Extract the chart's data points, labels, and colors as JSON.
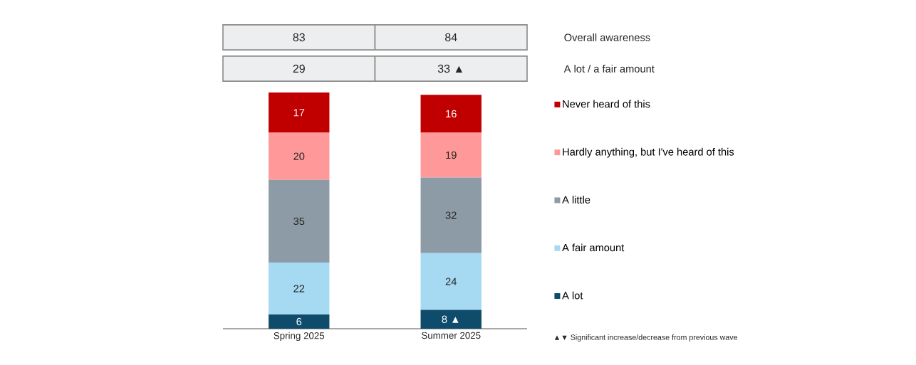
{
  "chart_data": [
    {
      "type": "other",
      "y2_categories": [
        "Overall awareness",
        "A lot / a fair amount"
      ],
      "cell_labels": [
        [
          "83",
          "84"
        ],
        [
          "29",
          "33 ▲"
        ]
      ]
    },
    {
      "type": "bar",
      "stacked": true,
      "categories": [
        "Spring 2025",
        "Summer 2025"
      ],
      "legend": "right",
      "series": [
        {
          "name": "A lot",
          "color": "#0f4c6b",
          "values": [
            6,
            8
          ],
          "value_labels": [
            "6",
            "8 ▲"
          ]
        },
        {
          "name": "A fair amount",
          "color": "#a6d9f2",
          "values": [
            22,
            24
          ],
          "value_labels": [
            "22",
            "24"
          ]
        },
        {
          "name": "A little",
          "color": "#8c9ba5",
          "values": [
            35,
            32
          ],
          "value_labels": [
            "35",
            "32"
          ]
        },
        {
          "name": "Hardly anything, but I've heard of this",
          "color": "#ff9999",
          "values": [
            20,
            19
          ],
          "value_labels": [
            "20",
            "19"
          ]
        },
        {
          "name": "Never heard of this",
          "color": "#c00000",
          "values": [
            17,
            16
          ],
          "value_labels": [
            "17",
            "16"
          ]
        }
      ],
      "annotations": [
        "▲▼ Significant increase/decrease from previous wave"
      ]
    }
  ]
}
